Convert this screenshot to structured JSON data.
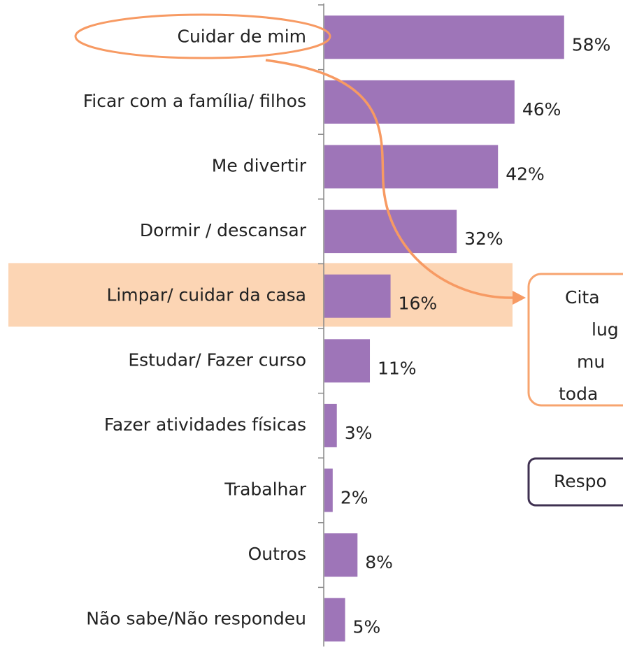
{
  "chart_data": {
    "type": "bar",
    "orientation": "horizontal",
    "categories": [
      "Cuidar de mim",
      "Ficar com a família/ filhos",
      "Me divertir",
      "Dormir / descansar",
      "Limpar/ cuidar da casa",
      "Estudar/ Fazer curso",
      "Fazer atividades físicas",
      "Trabalhar",
      "Outros",
      "Não sabe/Não respondeu"
    ],
    "values": [
      58,
      46,
      42,
      32,
      16,
      11,
      3,
      2,
      8,
      5
    ],
    "value_labels": [
      "58%",
      "46%",
      "42%",
      "32%",
      "16%",
      "11%",
      "3%",
      "2%",
      "8%",
      "5%"
    ],
    "color": "#9e75b8",
    "highlight_category": 4,
    "annotations": {
      "callout": [
        "Cita",
        "lug",
        "mu",
        "toda"
      ],
      "note": "Respo"
    }
  }
}
